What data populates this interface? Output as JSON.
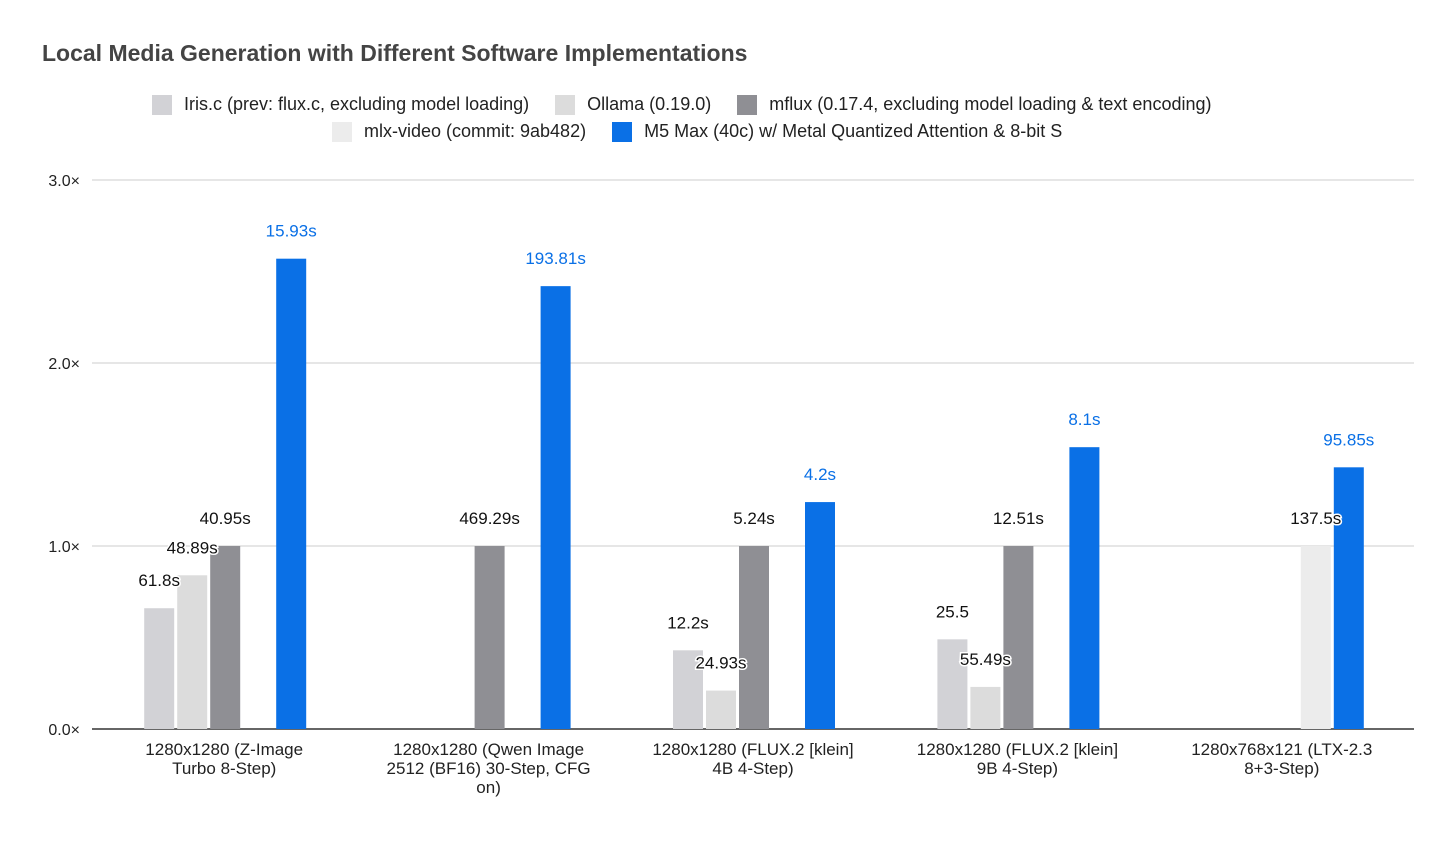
{
  "chart_data": {
    "type": "bar",
    "title": "Local Media Generation with Different Software Implementations",
    "xlabel": "",
    "ylabel": "",
    "ylim": [
      0,
      3
    ],
    "yticks": [
      "0.0×",
      "1.0×",
      "2.0×",
      "3.0×"
    ],
    "grid": true,
    "legend_position": "top",
    "categories": [
      [
        "1280x1280 (Z-Image",
        "Turbo 8-Step)"
      ],
      [
        "1280x1280 (Qwen Image",
        "2512 (BF16) 30-Step, CFG",
        "on)"
      ],
      [
        "1280x1280 (FLUX.2 [klein]",
        "4B 4-Step)"
      ],
      [
        "1280x1280 (FLUX.2 [klein]",
        "9B 4-Step)"
      ],
      [
        "1280x768x121 (LTX-2.3",
        "8+3-Step)"
      ]
    ],
    "series": [
      {
        "name": "Iris.c (prev: flux.c, excluding model loading)",
        "color": "#d2d2d6",
        "values": [
          0.66,
          null,
          0.43,
          0.49,
          null
        ],
        "labels": [
          "61.8s",
          null,
          "12.2s",
          "25.5",
          null
        ]
      },
      {
        "name": "Ollama (0.19.0)",
        "color": "#dcdcdc",
        "values": [
          0.84,
          null,
          0.21,
          0.23,
          null
        ],
        "labels": [
          "48.89s",
          null,
          "24.93s",
          "55.49s",
          null
        ]
      },
      {
        "name": "mflux (0.17.4, excluding model loading & text encoding)",
        "color": "#8f8f94",
        "values": [
          1.0,
          1.0,
          1.0,
          1.0,
          null
        ],
        "labels": [
          "40.95s",
          "469.29s",
          "5.24s",
          "12.51s",
          null
        ]
      },
      {
        "name": "mlx-video (commit: 9ab482)",
        "color": "#ececec",
        "values": [
          null,
          null,
          null,
          null,
          1.0
        ],
        "labels": [
          null,
          null,
          null,
          null,
          "137.5s"
        ]
      },
      {
        "name": "M5 Max (40c) w/ Metal Quantized Attention & 8-bit S",
        "color": "#0a70e6",
        "values": [
          2.57,
          2.42,
          1.24,
          1.54,
          1.43
        ],
        "labels": [
          "15.93s",
          "193.81s",
          "4.2s",
          "8.1s",
          "95.85s"
        ]
      }
    ]
  }
}
